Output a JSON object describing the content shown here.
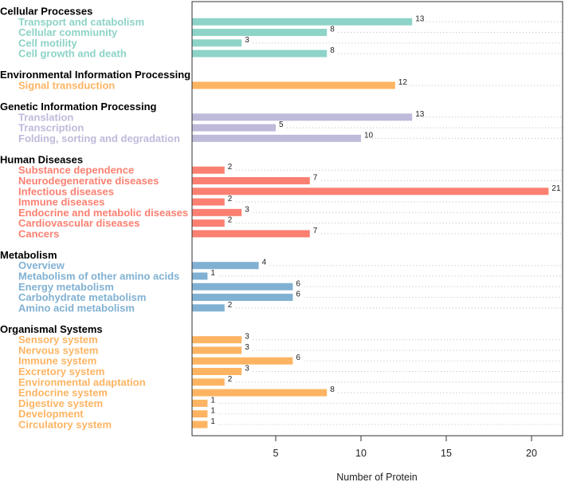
{
  "chart_data": {
    "type": "bar",
    "orientation": "horizontal",
    "title": "",
    "xlabel": "Number of Protein",
    "ylabel": "",
    "xlim": [
      0.1,
      21.8
    ],
    "xticks": [
      5,
      10,
      15,
      20
    ],
    "grid": "dotted horizontal row guides",
    "groups": [
      {
        "name": "Cellular Processes",
        "color": "#8dd3c7",
        "categories": [
          "Transport and catabolism",
          "Cellular commiunity",
          "Cell motility",
          "Cell growth and death"
        ],
        "values": [
          13,
          8,
          3,
          8
        ]
      },
      {
        "name": "Environmental Information Processing",
        "color": "#fdb462",
        "categories": [
          "Signal transduction"
        ],
        "values": [
          12
        ]
      },
      {
        "name": "Genetic Information Processing",
        "color": "#bebada",
        "categories": [
          "Translation",
          "Transcription",
          "Folding, sorting and degradation"
        ],
        "values": [
          13,
          5,
          10
        ]
      },
      {
        "name": "Human Diseases",
        "color": "#fb8072",
        "categories": [
          "Substance dependence",
          "Neurodegenerative diseases",
          "Infectious diseases",
          "Immune diseases",
          "Endocrine and metabolic diseases",
          "Cardiovascular diseases",
          "Cancers"
        ],
        "values": [
          2,
          7,
          21,
          2,
          3,
          2,
          7
        ]
      },
      {
        "name": "Metabolism",
        "color": "#80b1d3",
        "categories": [
          "Overview",
          "Metabolism of other amino acids",
          "Energy metabolism",
          "Carbohydrate metabolism",
          "Amino acid metabolism"
        ],
        "values": [
          4,
          1,
          6,
          6,
          2
        ]
      },
      {
        "name": "Organismal Systems",
        "color": "#fdb462",
        "categories": [
          "Sensory system",
          "Nervous system",
          "Immune system",
          "Excretory system",
          "Environmental adaptation",
          "Endocrine system",
          "Digestive system",
          "Development",
          "Circulatory system"
        ],
        "values": [
          3,
          3,
          6,
          3,
          2,
          8,
          1,
          1,
          1
        ]
      }
    ]
  }
}
